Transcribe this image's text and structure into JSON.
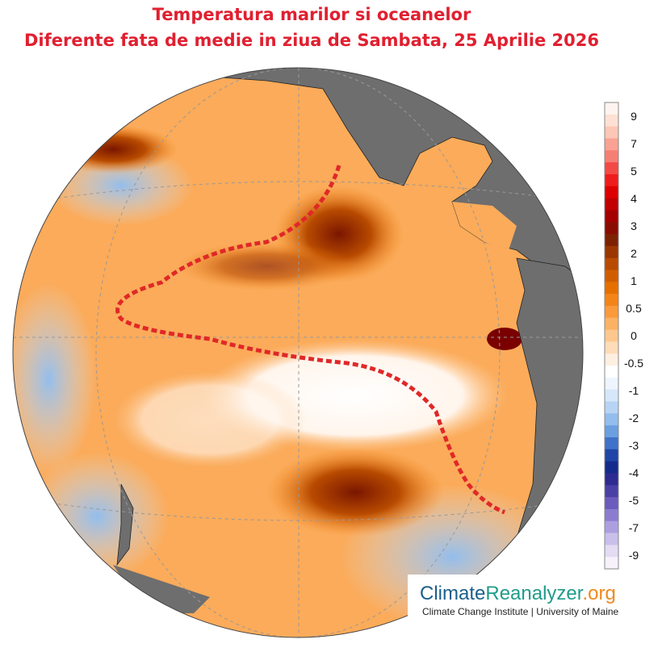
{
  "header": {
    "title_line1": "Temperatura marilor si oceanelor",
    "title_line2": "Diferente fata de medie in ziua de Sambata, 25 Aprilie 2026"
  },
  "colorbar": {
    "labels": [
      "9",
      "7",
      "5",
      "4",
      "3",
      "2",
      "1",
      "0.5",
      "0",
      "-0.5",
      "-1",
      "-2",
      "-3",
      "-4",
      "-5",
      "-7",
      "-9"
    ],
    "colors": [
      "#fff3ef",
      "#ffe0d4",
      "#fcc7b6",
      "#f9a293",
      "#f67f74",
      "#f34a45",
      "#ee1c1c",
      "#dd0000",
      "#c10000",
      "#a40000",
      "#8a0c00",
      "#7d2200",
      "#9a3600",
      "#b84b00",
      "#d05e00",
      "#e57000",
      "#f38418",
      "#f99a3c",
      "#fcb264",
      "#fdc78e",
      "#fedcb8",
      "#ffefe0",
      "#ffffff",
      "#eef5ff",
      "#d6e7fb",
      "#b7d4f4",
      "#93bdec",
      "#6b9fe0",
      "#3f72c8",
      "#1f45a6",
      "#142b8c",
      "#2d2a90",
      "#4a3fa5",
      "#6a5bbd",
      "#8c7ccf",
      "#ac9fdf",
      "#c9bfea",
      "#e3dcf3",
      "#f6f1fa"
    ]
  },
  "logo": {
    "part1": "Climate",
    "part2": "Reanalyzer",
    "part3": ".org",
    "subtitle": "Climate Change Institute | University of Maine"
  }
}
